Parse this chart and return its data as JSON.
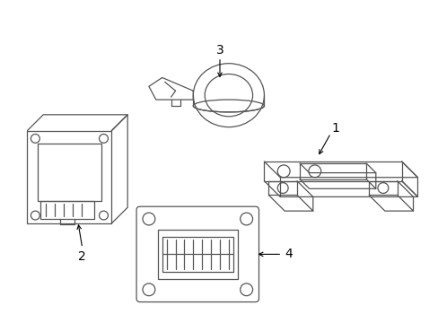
{
  "background_color": "#ffffff",
  "line_color": "#555555",
  "text_color": "#000000",
  "fig_width": 4.89,
  "fig_height": 3.6,
  "dpi": 100
}
